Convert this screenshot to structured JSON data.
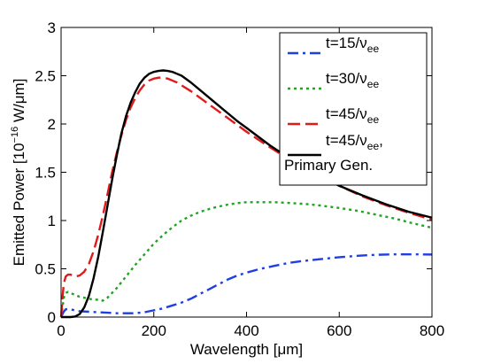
{
  "chart_data": {
    "type": "line",
    "xlabel": "Wavelength [μm]",
    "ylabel_main": "Emitted Power [10",
    "ylabel_exp": "−16",
    "ylabel_unit": " W/μm]",
    "xlim": [
      0,
      800
    ],
    "ylim": [
      0,
      3
    ],
    "xticks": [
      0,
      200,
      400,
      600,
      800
    ],
    "yticks": [
      0,
      0.5,
      1,
      1.5,
      2,
      2.5,
      3
    ],
    "ytick_labels": [
      "0",
      "0.5",
      "1",
      "1.5",
      "2",
      "2.5",
      "3"
    ],
    "grid": false,
    "legend_position": "top-right",
    "series": [
      {
        "legend_main": "t=15/ν",
        "legend_sub": "ee",
        "legend_line2": "",
        "color": "#1f3fe0",
        "style": "dashdot",
        "x": [
          0,
          5,
          10,
          15,
          20,
          30,
          40,
          60,
          80,
          100,
          120,
          140,
          160,
          180,
          200,
          220,
          240,
          260,
          280,
          300,
          320,
          340,
          360,
          380,
          400,
          430,
          460,
          490,
          520,
          560,
          600,
          640,
          680,
          720,
          760,
          800
        ],
        "y": [
          0,
          0.05,
          0.08,
          0.085,
          0.08,
          0.07,
          0.06,
          0.055,
          0.05,
          0.045,
          0.04,
          0.04,
          0.04,
          0.05,
          0.07,
          0.09,
          0.12,
          0.15,
          0.19,
          0.24,
          0.29,
          0.34,
          0.39,
          0.43,
          0.46,
          0.5,
          0.53,
          0.56,
          0.58,
          0.6,
          0.62,
          0.635,
          0.645,
          0.65,
          0.65,
          0.648
        ]
      },
      {
        "legend_main": "t=30/ν",
        "legend_sub": "ee",
        "legend_line2": "",
        "color": "#1fa51f",
        "style": "dotted",
        "x": [
          0,
          3,
          6,
          10,
          15,
          20,
          30,
          40,
          50,
          60,
          70,
          80,
          90,
          100,
          120,
          140,
          160,
          180,
          200,
          220,
          240,
          260,
          280,
          300,
          320,
          340,
          360,
          380,
          400,
          420,
          440,
          460,
          480,
          500,
          530,
          560,
          600,
          640,
          680,
          720,
          760,
          800
        ],
        "y": [
          0,
          0.1,
          0.2,
          0.25,
          0.26,
          0.25,
          0.23,
          0.21,
          0.2,
          0.19,
          0.18,
          0.18,
          0.17,
          0.2,
          0.3,
          0.42,
          0.54,
          0.65,
          0.76,
          0.85,
          0.93,
          1.0,
          1.05,
          1.09,
          1.12,
          1.145,
          1.165,
          1.18,
          1.19,
          1.19,
          1.19,
          1.19,
          1.185,
          1.18,
          1.17,
          1.155,
          1.13,
          1.1,
          1.06,
          1.02,
          0.97,
          0.925
        ]
      },
      {
        "legend_main": "t=45/ν",
        "legend_sub": "ee",
        "legend_line2": "",
        "color": "#e01a1a",
        "style": "dashed",
        "x": [
          0,
          3,
          6,
          10,
          15,
          20,
          30,
          40,
          50,
          60,
          70,
          80,
          90,
          100,
          110,
          120,
          130,
          140,
          150,
          160,
          170,
          180,
          190,
          200,
          210,
          220,
          230,
          240,
          250,
          260,
          280,
          300,
          320,
          340,
          360,
          380,
          400,
          450,
          500,
          550,
          600,
          650,
          700,
          750,
          800
        ],
        "y": [
          0,
          0.2,
          0.35,
          0.42,
          0.44,
          0.44,
          0.42,
          0.43,
          0.47,
          0.55,
          0.68,
          0.85,
          1.05,
          1.27,
          1.5,
          1.7,
          1.88,
          2.04,
          2.17,
          2.27,
          2.35,
          2.41,
          2.45,
          2.47,
          2.48,
          2.48,
          2.47,
          2.45,
          2.43,
          2.4,
          2.34,
          2.27,
          2.2,
          2.13,
          2.06,
          1.99,
          1.92,
          1.76,
          1.61,
          1.48,
          1.36,
          1.25,
          1.16,
          1.08,
          1.01
        ]
      },
      {
        "legend_main": "t=45/ν",
        "legend_sub": "ee",
        "legend_line2": "Primary Gen.",
        "color": "#000000",
        "style": "solid",
        "x": [
          0,
          20,
          30,
          40,
          50,
          60,
          70,
          80,
          90,
          100,
          110,
          120,
          130,
          140,
          150,
          160,
          170,
          180,
          190,
          200,
          210,
          220,
          230,
          240,
          250,
          260,
          280,
          300,
          320,
          340,
          360,
          380,
          400,
          450,
          500,
          550,
          600,
          650,
          700,
          750,
          800
        ],
        "y": [
          0,
          0,
          0.005,
          0.03,
          0.1,
          0.22,
          0.4,
          0.62,
          0.88,
          1.15,
          1.42,
          1.67,
          1.9,
          2.08,
          2.22,
          2.33,
          2.42,
          2.48,
          2.52,
          2.54,
          2.55,
          2.555,
          2.55,
          2.54,
          2.52,
          2.5,
          2.43,
          2.35,
          2.27,
          2.19,
          2.11,
          2.03,
          1.96,
          1.78,
          1.62,
          1.48,
          1.36,
          1.26,
          1.17,
          1.09,
          1.03
        ]
      }
    ]
  }
}
